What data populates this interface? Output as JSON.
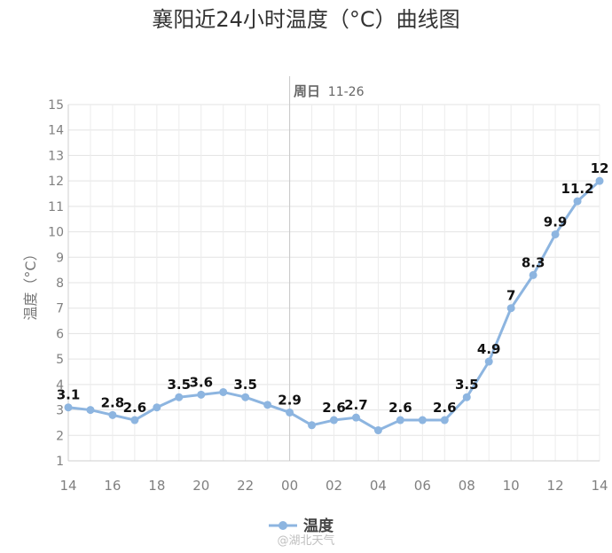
{
  "chart_data": {
    "type": "line",
    "title": "襄阳近24小时温度（°C）曲线图",
    "ylabel": "温度（°C）",
    "xlabel": "",
    "ylim": [
      1,
      15
    ],
    "yticks": [
      "1",
      "2",
      "3",
      "4",
      "5",
      "6",
      "7",
      "8",
      "9",
      "10",
      "11",
      "12",
      "13",
      "14",
      "15"
    ],
    "xticks": [
      "14",
      "16",
      "18",
      "20",
      "22",
      "00",
      "02",
      "04",
      "06",
      "08",
      "10",
      "12",
      "14"
    ],
    "day_marker": {
      "label": "周日",
      "date": "11-26"
    },
    "legend": {
      "position": "bottom-center"
    },
    "grid": true,
    "colors": {
      "line": "#8db5e0",
      "point": "#8db5e0",
      "label": "#111111",
      "axis_text": "#808080",
      "grid": "#e3e3e3"
    },
    "series": [
      {
        "name": "温度",
        "x": [
          "14",
          "15",
          "16",
          "17",
          "18",
          "19",
          "20",
          "21",
          "22",
          "23",
          "00",
          "01",
          "02",
          "03",
          "04",
          "05",
          "06",
          "07",
          "08",
          "09",
          "10",
          "11",
          "12",
          "13",
          "14"
        ],
        "values": [
          3.1,
          3.0,
          2.8,
          2.6,
          3.1,
          3.5,
          3.6,
          3.7,
          3.5,
          3.2,
          2.9,
          2.4,
          2.6,
          2.7,
          2.2,
          2.6,
          2.6,
          2.6,
          3.5,
          4.9,
          7.0,
          8.3,
          9.9,
          11.2,
          12.0
        ],
        "data_labels": [
          "3.1",
          "",
          "2.8",
          "2.6",
          "",
          "3.5",
          "3.6",
          "",
          "3.5",
          "",
          "2.9",
          "",
          "2.6",
          "2.7",
          "",
          "2.6",
          "",
          "2.6",
          "3.5",
          "4.9",
          "7",
          "8.3",
          "9.9",
          "11.2",
          "12"
        ]
      }
    ]
  },
  "watermark": "@湖北天气"
}
